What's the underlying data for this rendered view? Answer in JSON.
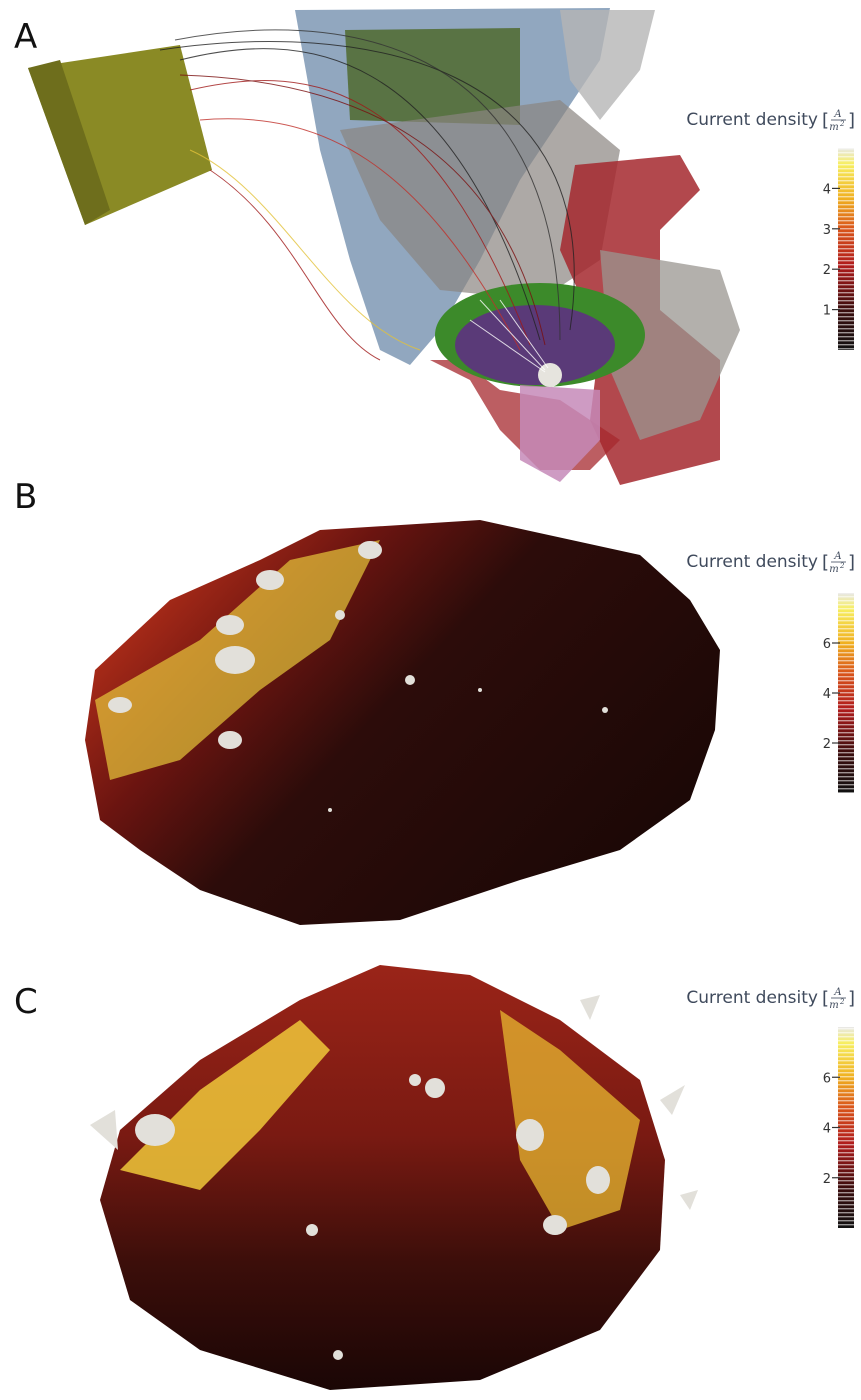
{
  "panels": [
    {
      "label": "A",
      "colorbar": {
        "title": "Current density",
        "unit": {
          "open": "[",
          "numerator": "A",
          "denominator": "m",
          "exponent": "2",
          "close": "]"
        },
        "lim": [
          0,
          5
        ],
        "ticks": [
          1,
          2,
          3,
          4
        ]
      }
    },
    {
      "label": "B",
      "colorbar": {
        "title": "Current density",
        "unit": {
          "open": "[",
          "numerator": "A",
          "denominator": "m",
          "exponent": "2",
          "close": "]"
        },
        "lim": [
          0,
          8
        ],
        "ticks": [
          2,
          4,
          6
        ]
      }
    },
    {
      "label": "C",
      "colorbar": {
        "title": "Current density",
        "unit": {
          "open": "[",
          "numerator": "A",
          "denominator": "m",
          "exponent": "2",
          "close": "]"
        },
        "lim": [
          0,
          8
        ],
        "ticks": [
          2,
          4,
          6
        ]
      }
    }
  ]
}
